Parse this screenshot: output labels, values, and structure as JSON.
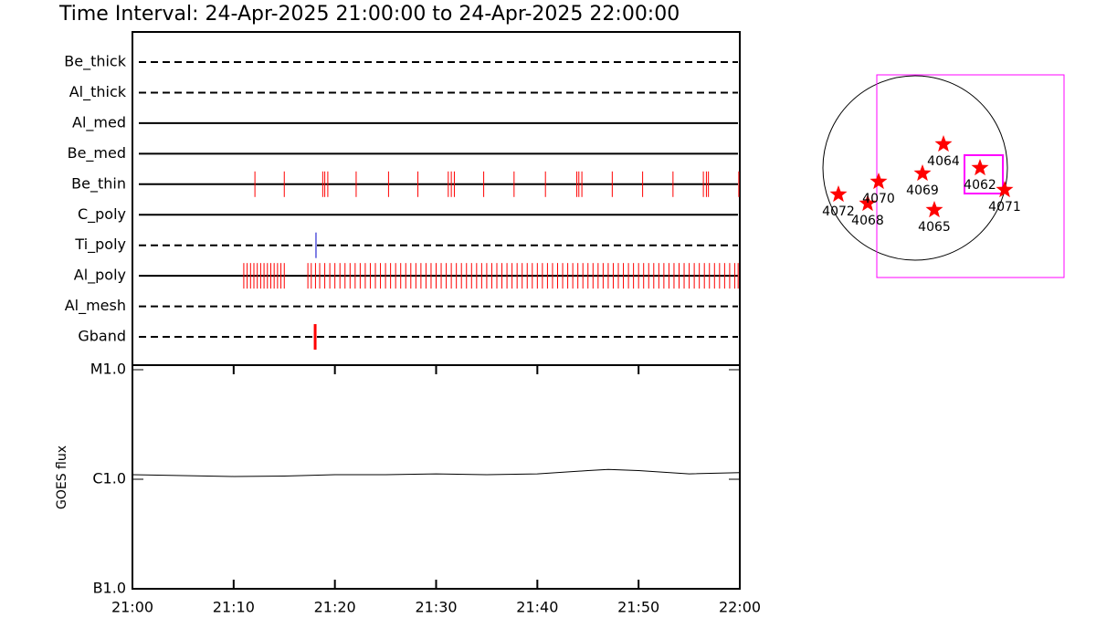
{
  "chart_data": [
    {
      "type": "timeline",
      "title": "Time Interval: 24-Apr-2025 21:00:00 to 24-Apr-2025 22:00:00",
      "xlim": [
        "21:00",
        "22:00"
      ],
      "filters": [
        {
          "name": "Be_thick",
          "line_style": "dashed",
          "color": "#ff0000",
          "events": []
        },
        {
          "name": "Al_thick",
          "line_style": "dashed",
          "color": "#ff0000",
          "events": []
        },
        {
          "name": "Al_med",
          "line_style": "solid",
          "color": "#ff0000",
          "events": []
        },
        {
          "name": "Be_med",
          "line_style": "solid",
          "color": "#ff0000",
          "events": []
        },
        {
          "name": "Be_thin",
          "line_style": "solid",
          "color": "#ff0000",
          "events": [
            "21:12:06",
            "21:15:00",
            "21:18:48",
            "21:19:00",
            "21:19:18",
            "21:22:06",
            "21:25:18",
            "21:28:12",
            "21:31:12",
            "21:31:30",
            "21:31:48",
            "21:34:42",
            "21:37:42",
            "21:40:48",
            "21:43:54",
            "21:44:06",
            "21:44:24",
            "21:47:24",
            "21:50:24",
            "21:53:24",
            "21:56:24",
            "21:56:42",
            "21:56:54",
            "21:59:54"
          ]
        },
        {
          "name": "C_poly",
          "line_style": "solid",
          "color": "#ff0000",
          "events": []
        },
        {
          "name": "Ti_poly",
          "line_style": "dashed",
          "color": "#0000cc",
          "events": [
            "21:18:08"
          ]
        },
        {
          "name": "Al_poly",
          "line_style": "solid",
          "color": "#ff0000",
          "events": [
            "21:11:00",
            "21:11:20",
            "21:11:40",
            "21:12:00",
            "21:12:20",
            "21:12:40",
            "21:13:00",
            "21:13:20",
            "21:13:40",
            "21:14:00",
            "21:14:20",
            "21:14:40",
            "21:15:00",
            "21:17:20",
            "21:17:40",
            "21:18:05",
            "21:18:30",
            "21:19:00",
            "21:19:30",
            "21:20:00",
            "21:20:30",
            "21:21:00",
            "21:21:30",
            "21:22:00",
            "21:22:30",
            "21:23:00",
            "21:23:30",
            "21:24:00",
            "21:24:30",
            "21:25:00",
            "21:25:30",
            "21:26:00",
            "21:26:30",
            "21:27:00",
            "21:27:30",
            "21:28:00",
            "21:28:30",
            "21:29:00",
            "21:29:30",
            "21:30:00",
            "21:30:30",
            "21:31:00",
            "21:31:30",
            "21:32:00",
            "21:32:30",
            "21:33:00",
            "21:33:30",
            "21:34:00",
            "21:34:30",
            "21:35:00",
            "21:35:30",
            "21:36:00",
            "21:36:30",
            "21:37:00",
            "21:37:30",
            "21:38:00",
            "21:38:30",
            "21:39:00",
            "21:39:30",
            "21:40:00",
            "21:40:30",
            "21:41:00",
            "21:41:30",
            "21:42:00",
            "21:42:30",
            "21:43:00",
            "21:43:30",
            "21:44:00",
            "21:44:30",
            "21:45:00",
            "21:45:30",
            "21:46:00",
            "21:46:30",
            "21:47:00",
            "21:47:30",
            "21:48:00",
            "21:48:30",
            "21:49:00",
            "21:49:30",
            "21:50:00",
            "21:50:30",
            "21:51:00",
            "21:51:30",
            "21:52:00",
            "21:52:30",
            "21:53:00",
            "21:53:30",
            "21:54:00",
            "21:54:30",
            "21:55:00",
            "21:55:30",
            "21:56:00",
            "21:56:30",
            "21:57:00",
            "21:57:30",
            "21:58:00",
            "21:58:30",
            "21:59:00",
            "21:59:30",
            "21:59:50"
          ]
        },
        {
          "name": "Al_mesh",
          "line_style": "dashed",
          "color": "#ff0000",
          "events": []
        },
        {
          "name": "Gband",
          "line_style": "dashed",
          "color": "#ff0000",
          "events": [
            "21:18:03"
          ]
        }
      ]
    },
    {
      "type": "line",
      "y_label": "GOES flux",
      "x": [
        "21:00",
        "21:05",
        "21:10",
        "21:15",
        "21:20",
        "21:25",
        "21:30",
        "21:35",
        "21:40",
        "21:45",
        "21:47",
        "21:50",
        "21:55",
        "22:00"
      ],
      "values": [
        1.1e-06,
        1.08e-06,
        1.06e-06,
        1.07e-06,
        1.1e-06,
        1.1e-06,
        1.12e-06,
        1.1e-06,
        1.12e-06,
        1.2e-06,
        1.23e-06,
        1.2e-06,
        1.12e-06,
        1.15e-06
      ],
      "color": "#000000",
      "xlim": [
        "21:00",
        "22:00"
      ],
      "xticks": [
        "21:00",
        "21:10",
        "21:20",
        "21:30",
        "21:40",
        "21:50",
        "22:00"
      ],
      "ylim": [
        1e-07,
        1e-05
      ],
      "log_scale": true,
      "yticks": [
        {
          "value": 1e-07,
          "label": "B1.0"
        },
        {
          "value": 1e-06,
          "label": "C1.0"
        },
        {
          "value": 1e-05,
          "label": "M1.0"
        }
      ]
    },
    {
      "type": "map",
      "regions": [
        {
          "label": "4072"
        },
        {
          "label": "4068"
        },
        {
          "label": "4070"
        },
        {
          "label": "4069"
        },
        {
          "label": "4064"
        },
        {
          "label": "4062"
        },
        {
          "label": "4065"
        },
        {
          "label": "4071"
        }
      ],
      "marker_color": "#ff0000",
      "fov_color": "#ff00ff"
    }
  ]
}
